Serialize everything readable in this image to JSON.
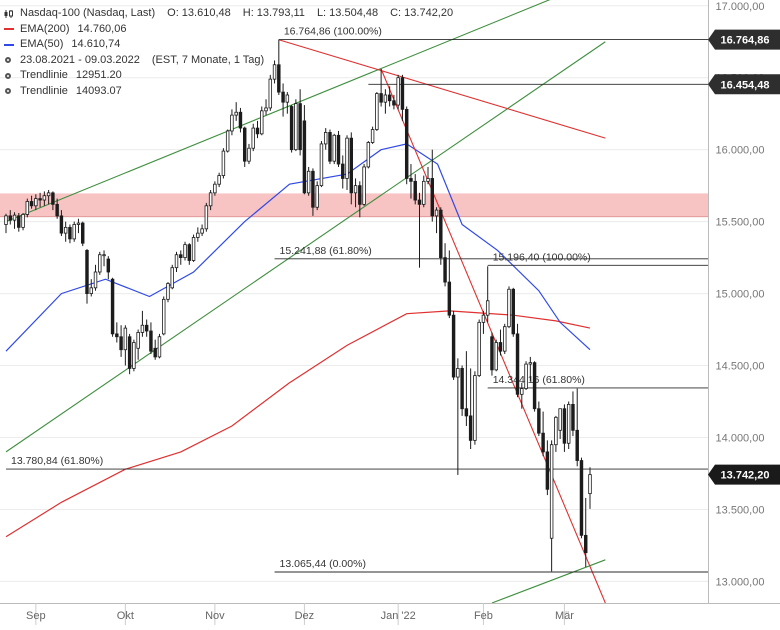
{
  "legend": {
    "title": "Nasdaq-100 (Nasdaq, Last)",
    "open": "O: 13.610,48",
    "high": "H: 13.793,11",
    "low": "L: 13.504,48",
    "close": "C: 13.742,20",
    "ema200_label": "EMA(200)",
    "ema200_value": "14.760,06",
    "ema50_label": "EMA(50)",
    "ema50_value": "14.610,74",
    "period": "23.08.2021 - 09.03.2022",
    "period_detail": "(EST, 7 Monate, 1 Tag)",
    "trend1_label": "Trendlinie",
    "trend1_value": "12951.20",
    "trend2_label": "Trendlinie",
    "trend2_value": "14093.07"
  },
  "chart_data": {
    "type": "candlestick",
    "title": "Nasdaq-100 (Nasdaq, Last)",
    "ylim": [
      12850,
      17040
    ],
    "y_ticks": [
      13000,
      13500,
      14000,
      14500,
      15000,
      15500,
      16000,
      16500,
      17000
    ],
    "y_tick_labels": [
      "13.000,00",
      "13.500,00",
      "14.000,00",
      "14.500,00",
      "15.000,00",
      "15.500,00",
      "16.000,00",
      "16.500,00",
      "17.000,00"
    ],
    "x_ticks": [
      {
        "label": "Sep",
        "date": "2021-09-01"
      },
      {
        "label": "Okt",
        "date": "2021-10-01"
      },
      {
        "label": "Nov",
        "date": "2021-11-01"
      },
      {
        "label": "Dez",
        "date": "2021-12-01"
      },
      {
        "label": "Jan '22",
        "date": "2022-01-03"
      },
      {
        "label": "Feb",
        "date": "2022-02-01"
      },
      {
        "label": "Mär",
        "date": "2022-03-01"
      }
    ],
    "price_labels": [
      {
        "value": 16764.86,
        "text": "16.764,86",
        "color": "#2e2e2e"
      },
      {
        "value": 16454.48,
        "text": "16.454,48",
        "color": "#2e2e2e"
      },
      {
        "value": 13742.2,
        "text": "13.742,20",
        "color": "#1a1a1a"
      }
    ],
    "levels": [
      {
        "value": 16764.86,
        "from": "2021-11-22",
        "label": "16.764,86 (100.00%)"
      },
      {
        "value": 16454.48,
        "from": "2021-12-22",
        "label": ""
      },
      {
        "value": 15241.88,
        "from": "2021-11-19",
        "label": "15.241,88 (61.80%)"
      },
      {
        "value": 15196.4,
        "from": "2022-02-02",
        "label": "15.196,40 (100.00%)"
      },
      {
        "value": 14344.16,
        "from": "2022-02-02",
        "label": "14.344,16 (61.80%)"
      },
      {
        "value": 13780.84,
        "from": "2021-08-23",
        "label": "13.780,84 (61.80%)"
      },
      {
        "value": 13065.44,
        "from": "2021-11-19",
        "label": "13.065,44 (0.00%)"
      }
    ],
    "zone": {
      "from": 15534,
      "to": 15696,
      "color": "#f6b8b8"
    },
    "trendlines": [
      {
        "name": "channel-upper",
        "color": "#3f8f3f",
        "x1": "2021-08-23",
        "y1": 15500,
        "x2": "2022-03-14",
        "y2": 17200
      },
      {
        "name": "channel-lower",
        "color": "#3f8f3f",
        "x1": "2021-08-23",
        "y1": 13900,
        "x2": "2022-03-14",
        "y2": 16750
      },
      {
        "name": "channel-bottom",
        "color": "#3f8f3f",
        "x1": "2022-02-03",
        "y1": 12850,
        "x2": "2022-03-14",
        "y2": 13150
      },
      {
        "name": "downtrend-long",
        "color": "#e03030",
        "x1": "2021-11-22",
        "y1": 16764,
        "x2": "2022-03-14",
        "y2": 16080
      },
      {
        "name": "downtrend-steep",
        "color": "#e03030",
        "x1": "2021-12-28",
        "y1": 16560,
        "x2": "2022-03-14",
        "y2": 12850
      }
    ],
    "ema_200": [
      [
        "2021-08-23",
        13310
      ],
      [
        "2021-09-10",
        13550
      ],
      [
        "2021-10-01",
        13780
      ],
      [
        "2021-10-20",
        13900
      ],
      [
        "2021-11-05",
        14080
      ],
      [
        "2021-11-25",
        14380
      ],
      [
        "2021-12-15",
        14640
      ],
      [
        "2022-01-05",
        14860
      ],
      [
        "2022-01-20",
        14880
      ],
      [
        "2022-02-10",
        14850
      ],
      [
        "2022-02-25",
        14810
      ],
      [
        "2022-03-09",
        14760
      ]
    ],
    "ema_50": [
      [
        "2021-08-23",
        14600
      ],
      [
        "2021-09-10",
        15000
      ],
      [
        "2021-09-25",
        15100
      ],
      [
        "2021-10-10",
        14980
      ],
      [
        "2021-10-25",
        15150
      ],
      [
        "2021-11-10",
        15500
      ],
      [
        "2021-11-25",
        15760
      ],
      [
        "2021-12-15",
        15830
      ],
      [
        "2021-12-28",
        16000
      ],
      [
        "2022-01-05",
        16040
      ],
      [
        "2022-01-15",
        15900
      ],
      [
        "2022-01-25",
        15480
      ],
      [
        "2022-02-05",
        15300
      ],
      [
        "2022-02-18",
        15020
      ],
      [
        "2022-02-28",
        14800
      ],
      [
        "2022-03-09",
        14610
      ]
    ],
    "ohlc": [
      [
        "2021-08-23",
        15480,
        15555,
        15420,
        15540
      ],
      [
        "2021-08-24",
        15540,
        15580,
        15480,
        15510
      ],
      [
        "2021-08-25",
        15510,
        15565,
        15450,
        15545
      ],
      [
        "2021-08-26",
        15540,
        15560,
        15430,
        15460
      ],
      [
        "2021-08-27",
        15460,
        15560,
        15440,
        15550
      ],
      [
        "2021-08-30",
        15550,
        15660,
        15530,
        15640
      ],
      [
        "2021-08-31",
        15640,
        15680,
        15590,
        15610
      ],
      [
        "2021-09-01",
        15610,
        15690,
        15580,
        15660
      ],
      [
        "2021-09-02",
        15660,
        15700,
        15600,
        15650
      ],
      [
        "2021-09-03",
        15650,
        15710,
        15610,
        15680
      ],
      [
        "2021-09-07",
        15680,
        15720,
        15620,
        15700
      ],
      [
        "2021-09-08",
        15700,
        15710,
        15580,
        15620
      ],
      [
        "2021-09-09",
        15620,
        15660,
        15520,
        15540
      ],
      [
        "2021-09-10",
        15540,
        15580,
        15400,
        15420
      ],
      [
        "2021-09-13",
        15420,
        15500,
        15360,
        15460
      ],
      [
        "2021-09-14",
        15460,
        15480,
        15350,
        15380
      ],
      [
        "2021-09-15",
        15380,
        15500,
        15360,
        15480
      ],
      [
        "2021-09-16",
        15480,
        15520,
        15420,
        15490
      ],
      [
        "2021-09-17",
        15490,
        15500,
        15330,
        15350
      ],
      [
        "2021-09-20",
        15300,
        15310,
        14930,
        15000
      ],
      [
        "2021-09-21",
        15000,
        15100,
        14980,
        15040
      ],
      [
        "2021-09-22",
        15040,
        15200,
        15020,
        15150
      ],
      [
        "2021-09-23",
        15150,
        15290,
        15130,
        15270
      ],
      [
        "2021-09-24",
        15270,
        15300,
        15190,
        15270
      ],
      [
        "2021-09-27",
        15240,
        15260,
        15100,
        15150
      ],
      [
        "2021-09-28",
        15100,
        15110,
        14700,
        14720
      ],
      [
        "2021-09-29",
        14720,
        14800,
        14660,
        14700
      ],
      [
        "2021-09-30",
        14700,
        14780,
        14560,
        14610
      ],
      [
        "2021-10-01",
        14610,
        14780,
        14500,
        14760
      ],
      [
        "2021-10-04",
        14700,
        14720,
        14440,
        14480
      ],
      [
        "2021-10-05",
        14480,
        14680,
        14460,
        14660
      ],
      [
        "2021-10-06",
        14620,
        14750,
        14540,
        14730
      ],
      [
        "2021-10-07",
        14730,
        14880,
        14700,
        14780
      ],
      [
        "2021-10-08",
        14780,
        14820,
        14700,
        14740
      ],
      [
        "2021-10-11",
        14740,
        14800,
        14580,
        14600
      ],
      [
        "2021-10-12",
        14620,
        14680,
        14540,
        14560
      ],
      [
        "2021-10-13",
        14560,
        14720,
        14550,
        14700
      ],
      [
        "2021-10-14",
        14720,
        14980,
        14710,
        14960
      ],
      [
        "2021-10-15",
        14960,
        15080,
        14940,
        15070
      ],
      [
        "2021-10-18",
        15040,
        15200,
        15030,
        15180
      ],
      [
        "2021-10-19",
        15180,
        15290,
        15150,
        15270
      ],
      [
        "2021-10-20",
        15270,
        15300,
        15200,
        15250
      ],
      [
        "2021-10-21",
        15250,
        15360,
        15230,
        15340
      ],
      [
        "2021-10-22",
        15340,
        15350,
        15200,
        15230
      ],
      [
        "2021-10-25",
        15230,
        15410,
        15220,
        15390
      ],
      [
        "2021-10-26",
        15390,
        15460,
        15360,
        15420
      ],
      [
        "2021-10-27",
        15420,
        15480,
        15400,
        15450
      ],
      [
        "2021-10-28",
        15450,
        15630,
        15430,
        15610
      ],
      [
        "2021-10-29",
        15610,
        15720,
        15580,
        15700
      ],
      [
        "2021-11-01",
        15700,
        15780,
        15680,
        15760
      ],
      [
        "2021-11-02",
        15760,
        15840,
        15740,
        15820
      ],
      [
        "2021-11-03",
        15820,
        16010,
        15800,
        15990
      ],
      [
        "2021-11-04",
        15990,
        16140,
        15980,
        16130
      ],
      [
        "2021-11-05",
        16130,
        16280,
        16100,
        16240
      ],
      [
        "2021-11-08",
        16240,
        16330,
        16200,
        16260
      ],
      [
        "2021-11-09",
        16260,
        16290,
        16120,
        16150
      ],
      [
        "2021-11-10",
        16150,
        16160,
        15880,
        15920
      ],
      [
        "2021-11-11",
        15920,
        16040,
        15900,
        16010
      ],
      [
        "2021-11-12",
        16010,
        16180,
        15990,
        16150
      ],
      [
        "2021-11-15",
        16150,
        16200,
        16080,
        16110
      ],
      [
        "2021-11-16",
        16110,
        16300,
        16100,
        16270
      ],
      [
        "2021-11-17",
        16270,
        16350,
        16240,
        16290
      ],
      [
        "2021-11-18",
        16290,
        16520,
        16270,
        16490
      ],
      [
        "2021-11-19",
        16490,
        16620,
        16460,
        16590
      ],
      [
        "2021-11-22",
        16590,
        16765,
        16380,
        16400
      ],
      [
        "2021-11-23",
        16400,
        16460,
        16230,
        16330
      ],
      [
        "2021-11-24",
        16330,
        16400,
        16250,
        16380
      ],
      [
        "2021-11-26",
        16300,
        16310,
        15980,
        16000
      ],
      [
        "2021-11-29",
        16000,
        16350,
        15990,
        16320
      ],
      [
        "2021-11-30",
        16320,
        16420,
        15960,
        16000
      ],
      [
        "2021-12-01",
        16200,
        16310,
        15690,
        15700
      ],
      [
        "2021-12-02",
        15700,
        15880,
        15680,
        15850
      ],
      [
        "2021-12-03",
        15850,
        15870,
        15540,
        15600
      ],
      [
        "2021-12-06",
        15600,
        15780,
        15580,
        15750
      ],
      [
        "2021-12-07",
        15750,
        16060,
        15740,
        16040
      ],
      [
        "2021-12-08",
        16040,
        16150,
        16000,
        16120
      ],
      [
        "2021-12-09",
        16120,
        16140,
        15900,
        15920
      ],
      [
        "2021-12-10",
        15920,
        16110,
        15900,
        16100
      ],
      [
        "2021-12-13",
        16100,
        16130,
        15880,
        15900
      ],
      [
        "2021-12-14",
        15900,
        15960,
        15730,
        15800
      ],
      [
        "2021-12-15",
        15800,
        16100,
        15720,
        16080
      ],
      [
        "2021-12-16",
        16080,
        16120,
        15620,
        15700
      ],
      [
        "2021-12-17",
        15700,
        15800,
        15600,
        15750
      ],
      [
        "2021-12-20",
        15750,
        15780,
        15530,
        15620
      ],
      [
        "2021-12-21",
        15620,
        15900,
        15610,
        15880
      ],
      [
        "2021-12-22",
        15880,
        16060,
        15870,
        16050
      ],
      [
        "2021-12-23",
        16050,
        16160,
        16040,
        16140
      ],
      [
        "2021-12-27",
        16140,
        16400,
        16130,
        16390
      ],
      [
        "2021-12-28",
        16390,
        16560,
        16300,
        16330
      ],
      [
        "2021-12-29",
        16330,
        16420,
        16250,
        16380
      ],
      [
        "2021-12-30",
        16380,
        16440,
        16300,
        16340
      ],
      [
        "2021-12-31",
        16340,
        16380,
        16280,
        16310
      ],
      [
        "2022-01-03",
        16310,
        16520,
        16280,
        16500
      ],
      [
        "2022-01-04",
        16500,
        16520,
        16200,
        16280
      ],
      [
        "2022-01-05",
        16280,
        16300,
        15760,
        15800
      ],
      [
        "2022-01-06",
        15800,
        15900,
        15660,
        15780
      ],
      [
        "2022-01-07",
        15780,
        15830,
        15620,
        15650
      ],
      [
        "2022-01-10",
        15650,
        15700,
        15180,
        15620
      ],
      [
        "2022-01-11",
        15620,
        15820,
        15600,
        15780
      ],
      [
        "2022-01-12",
        15780,
        15880,
        15760,
        15800
      ],
      [
        "2022-01-13",
        15800,
        16000,
        15500,
        15540
      ],
      [
        "2022-01-14",
        15540,
        15600,
        15420,
        15580
      ],
      [
        "2022-01-18",
        15580,
        15600,
        15200,
        15250
      ],
      [
        "2022-01-19",
        15250,
        15350,
        15050,
        15080
      ],
      [
        "2022-01-20",
        15080,
        15300,
        14830,
        14850
      ],
      [
        "2022-01-21",
        14850,
        14880,
        14400,
        14420
      ],
      [
        "2022-01-24",
        14420,
        14550,
        13740,
        14480
      ],
      [
        "2022-01-25",
        14480,
        14500,
        14150,
        14200
      ],
      [
        "2022-01-26",
        14200,
        14600,
        14080,
        14150
      ],
      [
        "2022-01-27",
        14150,
        14480,
        13920,
        13980
      ],
      [
        "2022-01-28",
        13980,
        14460,
        13950,
        14430
      ],
      [
        "2022-01-31",
        14430,
        14820,
        14420,
        14800
      ],
      [
        "2022-02-01",
        14800,
        14880,
        14720,
        14850
      ],
      [
        "2022-02-02",
        14850,
        15190,
        14800,
        14950
      ],
      [
        "2022-02-03",
        14700,
        14730,
        14430,
        14470
      ],
      [
        "2022-02-04",
        14470,
        14680,
        14460,
        14660
      ],
      [
        "2022-02-07",
        14660,
        14750,
        14570,
        14600
      ],
      [
        "2022-02-08",
        14600,
        14790,
        14580,
        14770
      ],
      [
        "2022-02-09",
        14770,
        15050,
        14760,
        15030
      ],
      [
        "2022-02-10",
        15030,
        15040,
        14700,
        14720
      ],
      [
        "2022-02-11",
        14720,
        14790,
        14280,
        14300
      ],
      [
        "2022-02-14",
        14300,
        14380,
        14200,
        14340
      ],
      [
        "2022-02-15",
        14340,
        14530,
        14330,
        14510
      ],
      [
        "2022-02-16",
        14510,
        14560,
        14390,
        14520
      ],
      [
        "2022-02-17",
        14520,
        14530,
        14180,
        14200
      ],
      [
        "2022-02-18",
        14200,
        14250,
        14010,
        14030
      ],
      [
        "2022-02-22",
        14030,
        14180,
        13870,
        13900
      ],
      [
        "2022-02-23",
        13900,
        13980,
        13600,
        13640
      ],
      [
        "2022-02-24",
        13300,
        13980,
        13070,
        13950
      ],
      [
        "2022-02-25",
        13950,
        14150,
        13900,
        14140
      ],
      [
        "2022-02-28",
        14050,
        14200,
        13990,
        14200
      ],
      [
        "2022-03-01",
        14200,
        14230,
        13900,
        13960
      ],
      [
        "2022-03-02",
        13960,
        14250,
        13920,
        14230
      ],
      [
        "2022-03-03",
        14230,
        14320,
        14010,
        14050
      ],
      [
        "2022-03-04",
        14050,
        14340,
        13800,
        13840
      ],
      [
        "2022-03-07",
        13840,
        13860,
        13300,
        13320
      ],
      [
        "2022-03-08",
        13320,
        13580,
        13100,
        13200
      ],
      [
        "2022-03-09",
        13610,
        13793,
        13504,
        13742
      ]
    ]
  }
}
